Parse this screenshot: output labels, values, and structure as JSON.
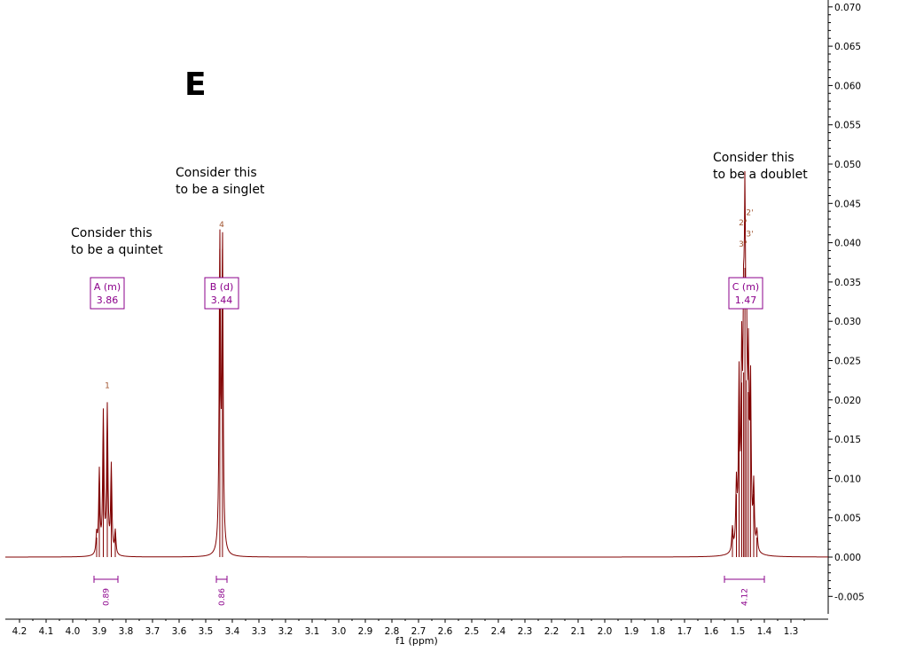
{
  "panel_letter": "E",
  "colors": {
    "spectrum": "#800000",
    "annotation": "#8b008b",
    "peak_label": "#a0522d",
    "axis": "#000000"
  },
  "chart_data": {
    "type": "line",
    "xlabel": "f1 (ppm)",
    "ylabel": "",
    "xlim": [
      4.25,
      1.25
    ],
    "ylim": [
      -0.008,
      0.07
    ],
    "x_reversed": true,
    "y_axis_side": "right",
    "x_ticks": [
      "4.2",
      "4.1",
      "4.0",
      "3.9",
      "3.8",
      "3.7",
      "3.6",
      "3.5",
      "3.4",
      "3.3",
      "3.2",
      "3.1",
      "3.0",
      "2.9",
      "2.8",
      "2.7",
      "2.6",
      "2.5",
      "2.4",
      "2.3",
      "2.2",
      "2.1",
      "2.0",
      "1.9",
      "1.8",
      "1.7",
      "1.6",
      "1.5",
      "1.4",
      "1.3"
    ],
    "y_ticks": [
      "-0.005",
      "0.000",
      "0.005",
      "0.010",
      "0.015",
      "0.020",
      "0.025",
      "0.030",
      "0.035",
      "0.040",
      "0.045",
      "0.050",
      "0.055",
      "0.060",
      "0.065",
      "0.070"
    ],
    "peaks": [
      {
        "ppm": 3.91,
        "intensity": 0.0025
      },
      {
        "ppm": 3.9,
        "intensity": 0.0105
      },
      {
        "ppm": 3.885,
        "intensity": 0.0178
      },
      {
        "ppm": 3.87,
        "intensity": 0.0186
      },
      {
        "ppm": 3.855,
        "intensity": 0.0112
      },
      {
        "ppm": 3.84,
        "intensity": 0.003
      },
      {
        "ppm": 3.447,
        "intensity": 0.0392
      },
      {
        "ppm": 3.437,
        "intensity": 0.0392
      },
      {
        "ppm": 1.52,
        "intensity": 0.003
      },
      {
        "ppm": 1.505,
        "intensity": 0.008
      },
      {
        "ppm": 1.495,
        "intensity": 0.021
      },
      {
        "ppm": 1.485,
        "intensity": 0.0222
      },
      {
        "ppm": 1.478,
        "intensity": 0.0235
      },
      {
        "ppm": 1.473,
        "intensity": 0.0368
      },
      {
        "ppm": 1.467,
        "intensity": 0.0225
      },
      {
        "ppm": 1.46,
        "intensity": 0.021
      },
      {
        "ppm": 1.452,
        "intensity": 0.0202
      },
      {
        "ppm": 1.44,
        "intensity": 0.008
      },
      {
        "ppm": 1.428,
        "intensity": 0.0025
      }
    ],
    "peak_labels": [
      {
        "ppm": 3.87,
        "intensity": 0.0215,
        "text": "1"
      },
      {
        "ppm": 3.44,
        "intensity": 0.042,
        "text": "4"
      },
      {
        "ppm": 1.455,
        "intensity": 0.0435,
        "text": "2'"
      },
      {
        "ppm": 1.48,
        "intensity": 0.0422,
        "text": "2\""
      },
      {
        "ppm": 1.455,
        "intensity": 0.0408,
        "text": "3'"
      },
      {
        "ppm": 1.48,
        "intensity": 0.0395,
        "text": "3\""
      }
    ],
    "multiplets": [
      {
        "label": "A (m)",
        "shift": "3.86",
        "ppm": 3.87
      },
      {
        "label": "B (d)",
        "shift": "3.44",
        "ppm": 3.44
      },
      {
        "label": "C (m)",
        "shift": "1.47",
        "ppm": 1.47
      }
    ],
    "integrals": [
      {
        "value": "0.89",
        "from": 3.92,
        "to": 3.83
      },
      {
        "value": "0.86",
        "from": 3.46,
        "to": 3.42
      },
      {
        "value": "4.12",
        "from": 1.55,
        "to": 1.4
      }
    ],
    "annotations": [
      {
        "lines": [
          "Consider this",
          "to be a quintet"
        ]
      },
      {
        "lines": [
          "Consider this",
          "to be a singlet"
        ]
      },
      {
        "lines": [
          "Consider this",
          "to be a doublet"
        ]
      }
    ]
  }
}
